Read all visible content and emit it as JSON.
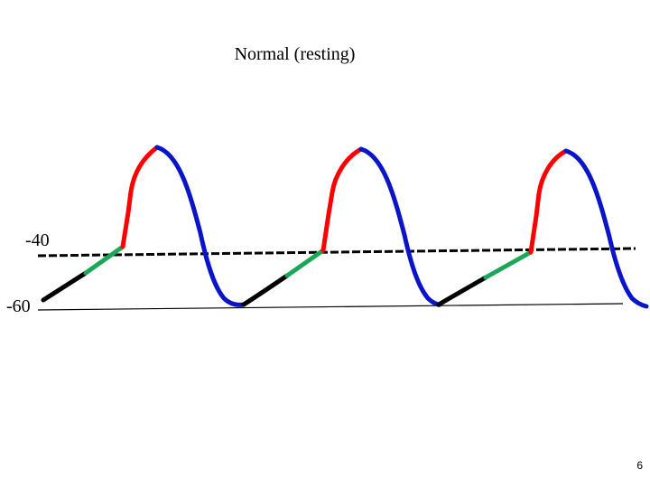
{
  "title": "Normal  (resting)",
  "labels": {
    "threshold": "-40",
    "resting": "-60"
  },
  "slide_number": "6",
  "colors": {
    "resting_phase": "#000000",
    "slow_depolarization": "#1aa858",
    "upstroke": "#ff0000",
    "repolarization": "#0a14c8",
    "reference_lines": "#000000"
  }
}
